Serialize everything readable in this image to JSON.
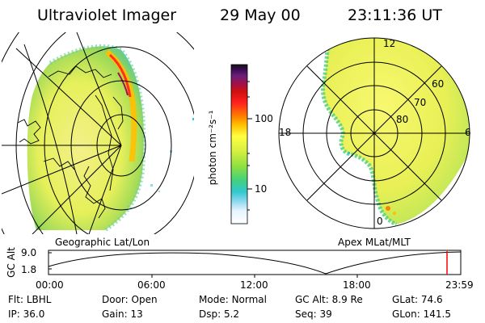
{
  "header": {
    "instrument": "Ultraviolet Imager",
    "date": "29 May 00",
    "time": "23:11:36 UT"
  },
  "colorbar": {
    "unit_label": "photon cm⁻²s⁻¹",
    "ticks": [
      "100",
      "10"
    ],
    "scale": "log",
    "colors": [
      "#111111",
      "#3a0a55",
      "#6a1f7a",
      "#a0104a",
      "#d01010",
      "#ff2020",
      "#ff7a00",
      "#ffc000",
      "#ffff40",
      "#d8f040",
      "#8ee040",
      "#40d080",
      "#30c8d0",
      "#90d8f0",
      "#e8f4ff",
      "#ffffff"
    ]
  },
  "left_panel": {
    "label": "Geographic Lat/Lon"
  },
  "right_panel": {
    "label": "Apex MLat/MLT",
    "mlt_labels": {
      "top": "12",
      "left": "18",
      "right": "6",
      "bottom": "0"
    },
    "lat_labels": [
      "60",
      "70",
      "80"
    ]
  },
  "orbit_plot": {
    "y_axis_label": "GC Alt",
    "y_ticks": [
      "9.0",
      "1.8"
    ],
    "x_ticks": [
      "00:00",
      "06:00",
      "12:00",
      "18:00",
      "23:59"
    ],
    "marker_color": "#ff0000"
  },
  "footer": {
    "row1": [
      {
        "label": "Flt:",
        "value": "LBHL"
      },
      {
        "label": "Door:",
        "value": "Open"
      },
      {
        "label": "Mode:",
        "value": "Normal"
      },
      {
        "label": "GC Alt:",
        "value": "8.9 Re"
      },
      {
        "label": "GLat:",
        "value": "74.6"
      }
    ],
    "row2": [
      {
        "label": "IP:",
        "value": "36.0"
      },
      {
        "label": "Gain:",
        "value": "13"
      },
      {
        "label": "Dsp:",
        "value": "5.2"
      },
      {
        "label": "Seq:",
        "value": "39"
      },
      {
        "label": "GLon:",
        "value": "141.5"
      }
    ]
  }
}
